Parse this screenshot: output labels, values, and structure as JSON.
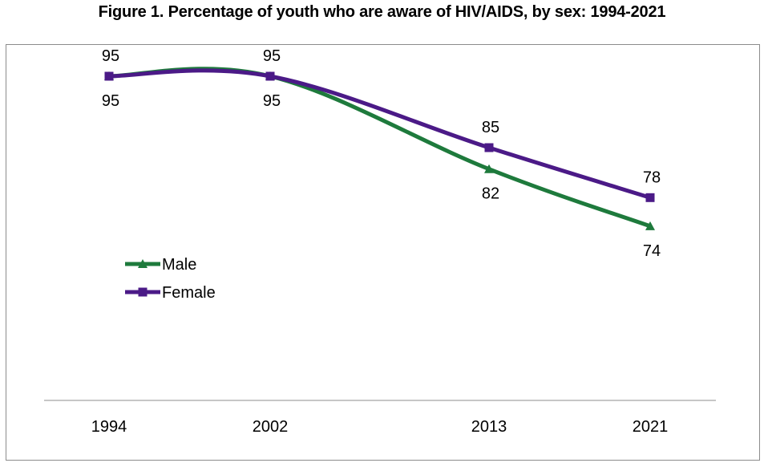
{
  "chart_data": {
    "type": "line",
    "title": "Figure 1. Percentage of youth who are aware of HIV/AIDS, by sex: 1994-2021",
    "categories": [
      "1994",
      "2002",
      "2013",
      "2021"
    ],
    "series": [
      {
        "name": "Male",
        "values": [
          95,
          95,
          82,
          74
        ],
        "color": "#1e7a3c",
        "marker": "triangle"
      },
      {
        "name": "Female",
        "values": [
          95,
          95,
          85,
          78
        ],
        "color": "#4b1a87",
        "marker": "square"
      }
    ],
    "ylim": [
      50,
      100
    ],
    "grid": false,
    "legend": "middle-left",
    "xlabel": "",
    "ylabel": ""
  }
}
